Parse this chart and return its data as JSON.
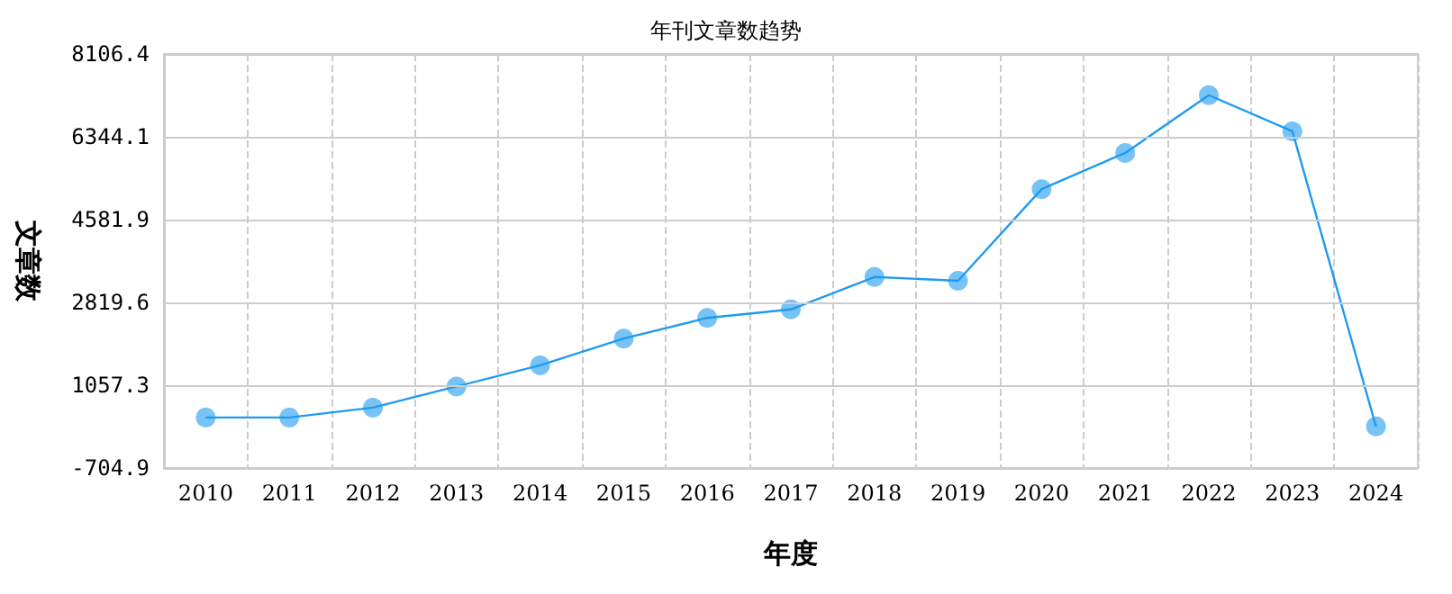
{
  "chart_data": {
    "type": "line",
    "title": "年刊文章数趋势",
    "xlabel": "年度",
    "ylabel": "文章数",
    "categories": [
      "2010",
      "2011",
      "2012",
      "2013",
      "2014",
      "2015",
      "2016",
      "2017",
      "2018",
      "2019",
      "2020",
      "2021",
      "2022",
      "2023",
      "2024"
    ],
    "series": [
      {
        "color": "#1e9bf0",
        "values": [
          370,
          370,
          580,
          1030,
          1480,
          2050,
          2490,
          2670,
          3360,
          3280,
          5230,
          6000,
          7230,
          6460,
          180
        ]
      }
    ],
    "ylim": [
      -704.9,
      8106.4
    ],
    "yticks": [
      -704.9,
      1057.3,
      2819.6,
      4581.9,
      6344.1,
      8106.4
    ],
    "grid": true,
    "marker": "circle"
  }
}
